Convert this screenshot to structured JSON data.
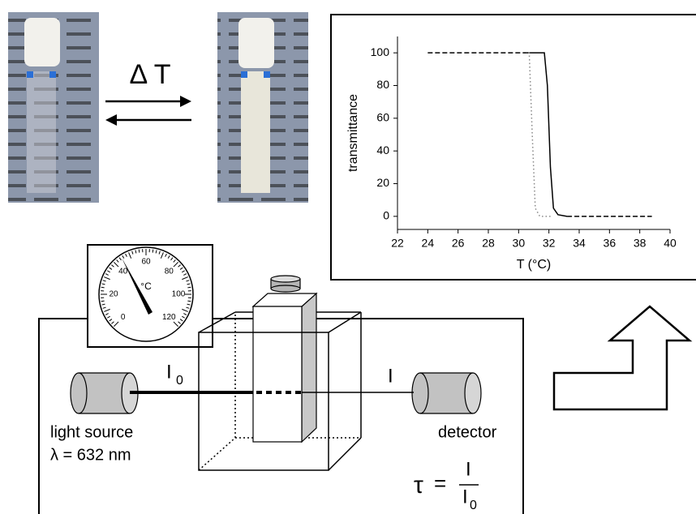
{
  "photo_arrow": {
    "label": "Δ T"
  },
  "apparatus": {
    "gauge": {
      "unit": "°C",
      "labels": [
        "0",
        "20",
        "40",
        "60",
        "80",
        "100",
        "120"
      ]
    },
    "incident_label": {
      "main": "I",
      "sub": "0"
    },
    "transmitted_label": "I",
    "source_label": "light source",
    "wavelength_label": "λ = 632 nm",
    "detector_label": "detector",
    "formula": {
      "symbol": "τ",
      "equals": "=",
      "numerator": "I",
      "denominator": "I",
      "denominator_sub": "0"
    }
  },
  "chart_data": {
    "type": "line",
    "xlabel": "T (°C)",
    "ylabel": "transmittance",
    "xlim": [
      22,
      40
    ],
    "xticks": [
      22,
      24,
      26,
      28,
      30,
      32,
      34,
      36,
      38,
      40
    ],
    "ylim": [
      -8,
      110
    ],
    "yticks": [
      0,
      20,
      40,
      60,
      80,
      100
    ],
    "series": [
      {
        "color": "#000000",
        "style": "solid",
        "x": [
          30.5,
          31.7,
          31.9,
          32.1,
          32.3,
          32.6,
          33.2
        ],
        "values": [
          100,
          100,
          80,
          30,
          5,
          1,
          0
        ]
      },
      {
        "color": "#888888",
        "style": "dotted",
        "x": [
          30.4,
          30.7,
          30.9,
          31.1,
          31.4,
          32.2
        ],
        "values": [
          100,
          100,
          50,
          5,
          0,
          0
        ]
      },
      {
        "color": "#000000",
        "style": "dashed",
        "x": [
          24,
          30.5,
          31,
          33.2,
          38.8
        ],
        "values": [
          100,
          100,
          null,
          0,
          0
        ]
      }
    ]
  }
}
